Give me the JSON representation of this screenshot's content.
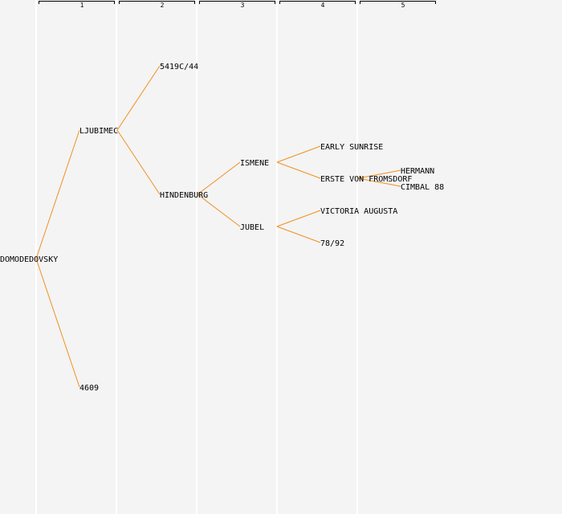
{
  "generations": [
    "1",
    "2",
    "3",
    "4",
    "5"
  ],
  "colors": {
    "background": "#f4f4f4",
    "separator": "#ffffff",
    "link": "#f0901e",
    "text": "#000000"
  },
  "nodes": {
    "domodedovsky": "DOMODEDOVSKY",
    "ljubimec": "LJUBIMEC",
    "n4609": "4609",
    "n5419c44": "5419C/44",
    "hindenburg": "HINDENBURG",
    "ismene": "ISMENE",
    "jubel": "JUBEL",
    "early_sunrise": "EARLY SUNRISE",
    "erste_von_fromsdorf": "ERSTE VON FROMSDORF",
    "victoria_augusta": "VICTORIA AUGUSTA",
    "n7892": "78/92",
    "hermann": "HERMANN",
    "cimbal_88": "CIMBAL 88"
  }
}
